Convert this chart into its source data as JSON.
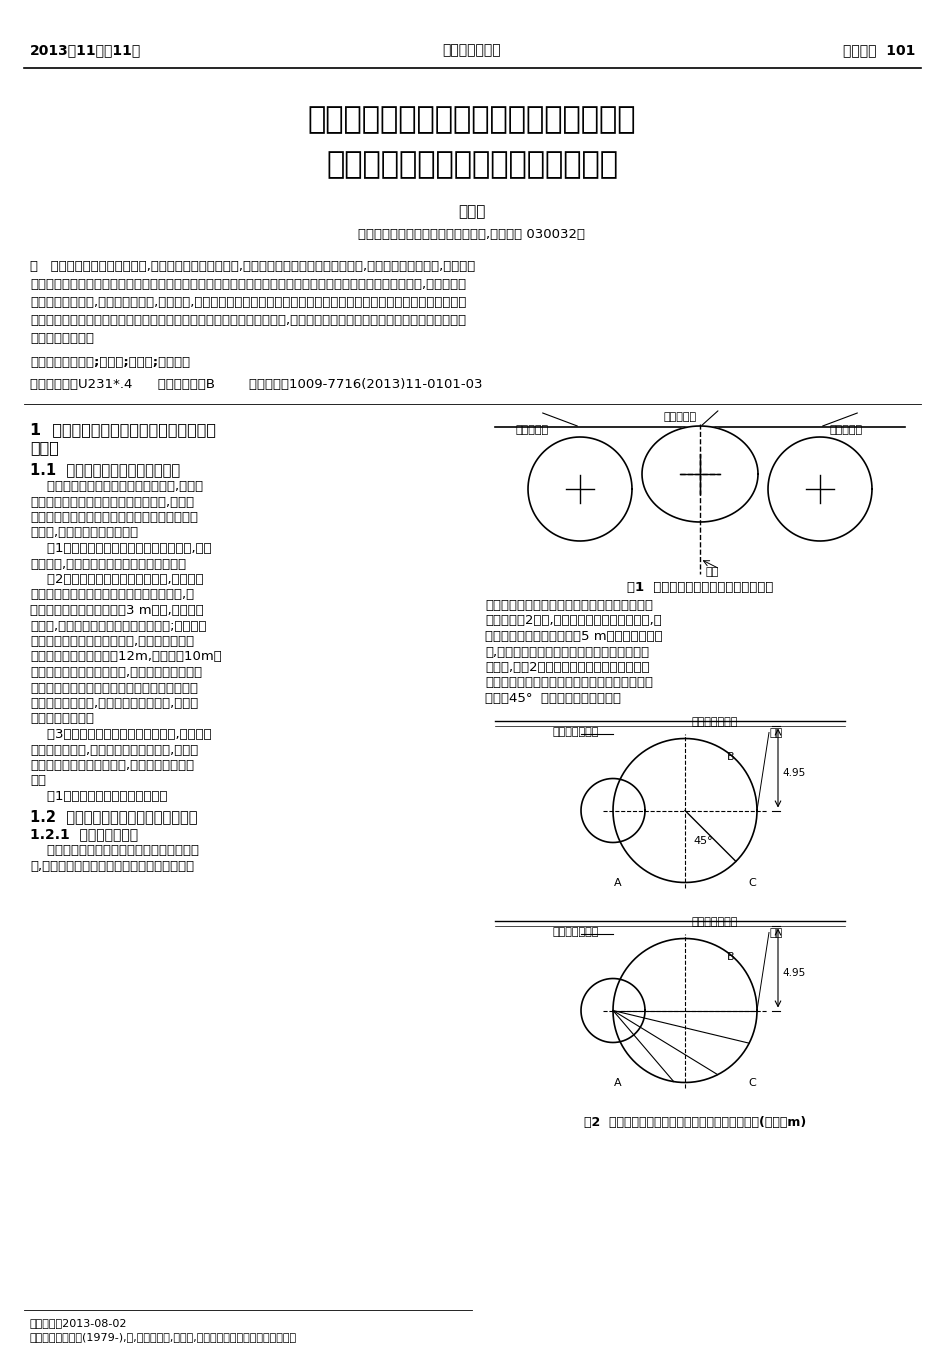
{
  "page_width": 9.45,
  "page_height": 13.51,
  "bg_color": "#ffffff",
  "header_left": "2013年11月第11期",
  "header_center": "城市道桥与防洪",
  "header_right": "管理施工  101",
  "title_line1": "地铁车站盾构法与矿山法联合施工技术及",
  "title_line2": "地铁车站施工防渗漏控制要点的探析",
  "author": "孟亚武",
  "affiliation": "（中铁十七局集团第一工程有限公司,山西太原 030032）",
  "abstract_lines": [
    "摘   要：在城市地铁车站施工中,盾构施工法运用较为广泛,其特点有安全快速、对环境影响小,以及适用范围广等等,此方法已",
    "经成为我国地下铁道修建中非常重要的施工方法。在实际地铁车站施工中若能将盾构法和其它辅助方法结合起来,例如盾构法",
    "与矿山法联合施工,能缩短建设工期,降低造价,有良好的技术经济效益。地铁车站施工过程中结构的渗漏问题也是不可忽视的",
    "问题。该文着重阐述了地铁车站盾构法与矿山法联合施工的一些技术要点,并在最后简要介绍了关于地铁车站施工防渗漏控制",
    "的一些施工要点。"
  ],
  "keywords": "关键词：地铁车站;盾构法;矿山法;施工控制",
  "classinfo": "中图分类号：U231*.4      文献标识码：B        文章编号：1009-7716(2013)11-0101-03",
  "sec1_title_l1": "1  地铁车站盾构法与矿山法联合施工技术",
  "sec1_title_l2": "的运用",
  "sec1_1_title": "1.1  盾构法与矿山法联合施工方案",
  "left_body": [
    "    地铁车站很多都是单层三跨隧道结构,根据此",
    "特点考虑先采用盾构法在两侧隧道施工,然后采",
    "用矿山法在隧道的中段施工。采用这两者方法联",
    "合施工,具有以下的技术优势：",
    "    （1）工作竖井可以利用两端的明控车站,采用",
    "盾构法时,两侧车站隧道在施工中不用降水。",
    "    （2）中段隧道的施工采取矿山法,为了使土",
    "体的作用得到充分的利用而采取长台阶施工,由",
    "于地下水位一般在轨顶上方3 m左右,位于上台",
    "阶之下,所以以上台阶施工中也不用降水;由于两侧",
    "盾构法隧道结构可以作为支撑,所以仅用上下两",
    "个台阶即可完成宽度约为12m,高度约为10m的",
    "大断面隧道施工。与此同时,根据地下水的渗流速",
    "度的大小、下台阶的结构施工仅采用明排法或者",
    "洞内降水即可完成,从而大大减少降水量,减轻对",
    "地面环境的干扰。",
    "    （3）施工中的管片经过特殊设计后,可以重复",
    "使用拆除的管片,几乎没有施工的废弃物,这从某",
    "种程度上不仅降低工程造价,同时还加快施工进",
    "度。"
  ],
  "fig1_ref": "    图1为两种工法联合施工示意图。",
  "sec1_2_title": "1.2  地铁车站盾构法施工隧道结构设计",
  "sec1_2_1_title": "1.2.1  隧道的内径确定",
  "sec1_2_1_body": [
    "    地铁车站盾构隧道的内径由下面两个因素确",
    "定,分别是客流人员由站台进入地铁车厢的建筑"
  ],
  "fig1_caption": "图1  两种工法联合施工地铁车站示意图",
  "right_body": [
    "高度和区间隧道施工盾构机能够从车站盾构隧道",
    "通过。如图2所示,根据《地下铁道设计规范》,站",
    "台进入地铁车厢的高度取为5 m左右即可满足要",
    "求,为了尽可能增加隧道净空而同时又不增大隧",
    "道埋深,对图2所示区间隧道进入车站隧道的两",
    "种位置进行综合分析比较后选用区间隧道与车站",
    "隧道在45°  位置相切的进入方式。"
  ],
  "fig2_caption": "图2  区间盾构隧道与车站盾构隧道相对位置示意图(单位：m)",
  "footer_date": "收稿日期：2013-08-02",
  "footer_author": "作者简介：孟亚武(1979-),男,甘肃镇原人,工程师,研究方向：交通工程桥梁与隧道。"
}
